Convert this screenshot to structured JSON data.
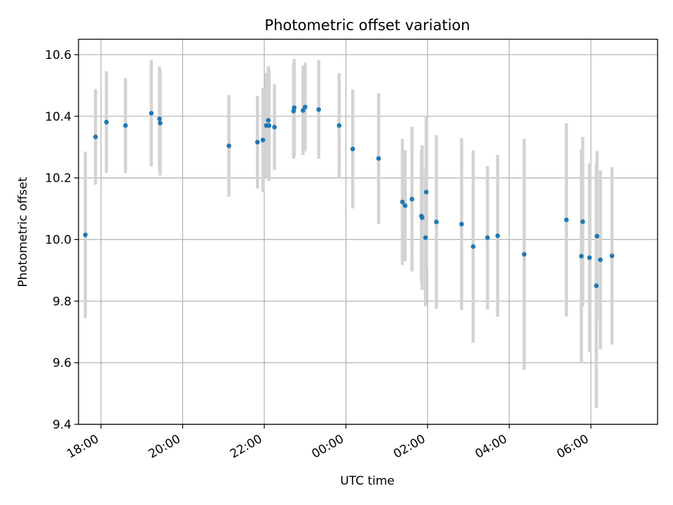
{
  "chart_data": {
    "type": "scatter",
    "title": "Photometric offset variation",
    "xlabel": "UTC time",
    "ylabel": "Photometric offset",
    "x_axis_type": "time",
    "x_start_datetime": "17:00",
    "xlim": [
      "17:27",
      "07:38"
    ],
    "ylim": [
      9.4,
      10.65
    ],
    "grid": true,
    "x_ticks": [
      "18:00",
      "20:00",
      "22:00",
      "00:00",
      "02:00",
      "04:00",
      "06:00"
    ],
    "y_ticks": [
      "9.4",
      "9.6",
      "9.8",
      "10.0",
      "10.2",
      "10.4",
      "10.6"
    ],
    "x_tick_times": [
      "18:00",
      "20:00",
      "22:00",
      "00:00",
      "02:00",
      "04:00",
      "06:00"
    ],
    "y_tick_values": [
      9.4,
      9.6,
      9.8,
      10.0,
      10.2,
      10.4,
      10.6
    ],
    "colors": {
      "points": "#1f77b4",
      "errorbars": "#d3d3d3",
      "grid": "#b0b0b0"
    },
    "series": [
      {
        "x": [
          "17:37",
          "17:52",
          "18:08",
          "18:36",
          "19:14",
          "19:26",
          "19:27",
          "21:08",
          "21:50",
          "21:58",
          "22:03",
          "22:06",
          "22:07",
          "22:15",
          "22:43",
          "22:44",
          "22:57",
          "23:00",
          "23:20",
          "23:50",
          "00:10",
          "00:48",
          "01:23",
          "01:27",
          "01:37",
          "01:51",
          "01:52",
          "01:57",
          "01:58",
          "02:13",
          "02:50",
          "03:07",
          "03:28",
          "03:43",
          "04:22",
          "05:24",
          "05:46",
          "05:48",
          "05:58",
          "06:08",
          "06:09",
          "06:14",
          "06:31"
        ],
        "y": [
          10.015,
          10.333,
          10.381,
          10.37,
          10.41,
          10.392,
          10.378,
          10.304,
          10.316,
          10.323,
          10.37,
          10.387,
          10.37,
          10.365,
          10.417,
          10.428,
          10.419,
          10.43,
          10.422,
          10.37,
          10.294,
          10.263,
          10.122,
          10.11,
          10.131,
          10.076,
          10.071,
          10.006,
          10.154,
          10.057,
          10.05,
          9.977,
          10.006,
          10.012,
          9.952,
          10.064,
          9.946,
          10.058,
          9.941,
          9.85,
          10.011,
          9.934,
          9.947
        ],
        "yerr": [
          0.27,
          0.155,
          0.165,
          0.155,
          0.173,
          0.17,
          0.17,
          0.165,
          0.15,
          0.17,
          0.17,
          0.175,
          0.18,
          0.14,
          0.155,
          0.158,
          0.145,
          0.144,
          0.16,
          0.17,
          0.193,
          0.212,
          0.205,
          0.18,
          0.235,
          0.213,
          0.235,
          0.223,
          0.246,
          0.282,
          0.279,
          0.312,
          0.233,
          0.263,
          0.375,
          0.314,
          0.348,
          0.275,
          0.306,
          0.397,
          0.276,
          0.29,
          0.288
        ]
      }
    ]
  }
}
